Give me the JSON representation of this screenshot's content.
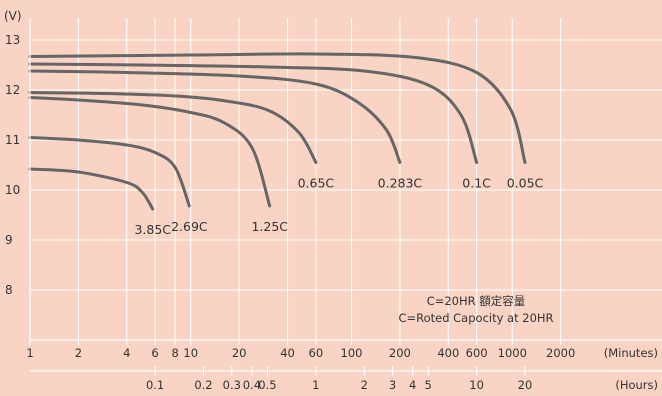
{
  "chart_data": {
    "type": "line",
    "ylabel": "(V)",
    "ylim": [
      7.2,
      13.3
    ],
    "yticks": [
      "13",
      "12",
      "11",
      "10",
      "9",
      "8"
    ],
    "x_axis_minutes": {
      "label": "(Minutes)",
      "scale": "log",
      "range": [
        1,
        2000
      ],
      "ticks": [
        "1",
        "2",
        "4",
        "6",
        "8",
        "10",
        "20",
        "40",
        "60",
        "100",
        "200",
        "400",
        "600",
        "1000",
        "2000"
      ]
    },
    "x_axis_hours": {
      "label": "(Hours)",
      "ticks": [
        "0.1",
        "0.2",
        "0.3",
        "0.4",
        "0.5",
        "1",
        "2",
        "3",
        "4",
        "5",
        "10",
        "20"
      ]
    },
    "series": [
      {
        "name": "3.85C",
        "points": [
          [
            1,
            10.42
          ],
          [
            2,
            10.36
          ],
          [
            4,
            10.15
          ],
          [
            5,
            9.95
          ],
          [
            5.8,
            9.62
          ]
        ]
      },
      {
        "name": "2.69C",
        "points": [
          [
            1,
            11.05
          ],
          [
            2,
            11.0
          ],
          [
            4,
            10.9
          ],
          [
            6,
            10.75
          ],
          [
            8,
            10.45
          ],
          [
            9.8,
            9.68
          ]
        ]
      },
      {
        "name": "1.25C",
        "points": [
          [
            1,
            11.85
          ],
          [
            2,
            11.8
          ],
          [
            5,
            11.7
          ],
          [
            10,
            11.55
          ],
          [
            16,
            11.35
          ],
          [
            24,
            10.85
          ],
          [
            31,
            9.68
          ]
        ]
      },
      {
        "name": "0.65C",
        "points": [
          [
            1,
            11.95
          ],
          [
            3,
            11.93
          ],
          [
            8,
            11.88
          ],
          [
            15,
            11.8
          ],
          [
            30,
            11.6
          ],
          [
            47,
            11.15
          ],
          [
            60,
            10.55
          ]
        ]
      },
      {
        "name": "0.283C",
        "points": [
          [
            1,
            12.38
          ],
          [
            4,
            12.35
          ],
          [
            20,
            12.28
          ],
          [
            60,
            12.12
          ],
          [
            110,
            11.75
          ],
          [
            165,
            11.2
          ],
          [
            200,
            10.55
          ]
        ]
      },
      {
        "name": "0.1C",
        "points": [
          [
            1,
            12.52
          ],
          [
            5,
            12.5
          ],
          [
            30,
            12.46
          ],
          [
            120,
            12.38
          ],
          [
            300,
            12.1
          ],
          [
            480,
            11.5
          ],
          [
            600,
            10.55
          ]
        ]
      },
      {
        "name": "0.05C",
        "points": [
          [
            1,
            12.67
          ],
          [
            10,
            12.7
          ],
          [
            60,
            12.72
          ],
          [
            250,
            12.65
          ],
          [
            600,
            12.35
          ],
          [
            980,
            11.6
          ],
          [
            1200,
            10.55
          ]
        ]
      }
    ],
    "annotations": [
      "C=20HR 額定容量",
      "C=Roted Capocity at 20HR"
    ],
    "grid": true
  },
  "colors": {
    "background": "#f9d3c3",
    "grid": "#ffffff",
    "curve": "#666666",
    "text": "#333333"
  }
}
